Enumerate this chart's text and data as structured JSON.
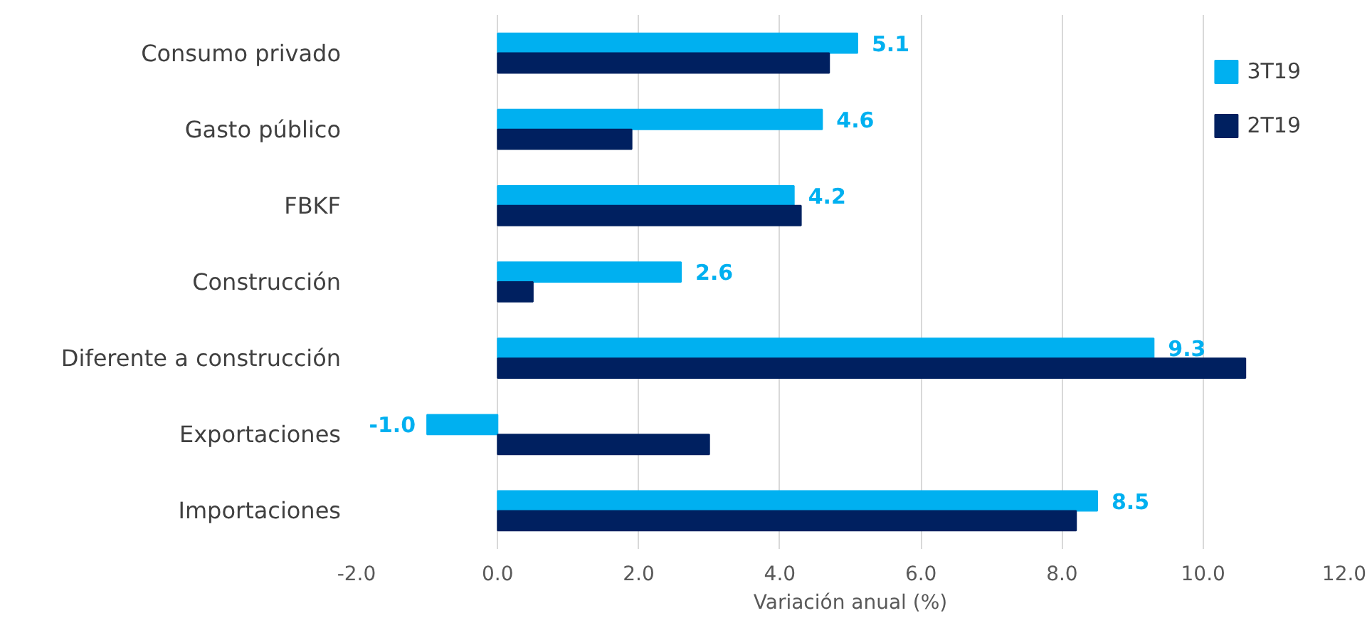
{
  "chart_data": {
    "type": "bar",
    "orientation": "horizontal",
    "xlabel": "Variación anual (%)",
    "categories": [
      "Consumo privado",
      "Gasto público",
      "FBKF",
      "Construcción",
      "Diferente a construcción",
      "Exportaciones",
      "Importaciones"
    ],
    "series": [
      {
        "name": "3T19",
        "color": "#00b0f0",
        "values": [
          5.1,
          4.6,
          4.2,
          2.6,
          9.3,
          -1.0,
          8.5
        ],
        "value_labels": [
          "5.1",
          "4.6",
          "4.2",
          "2.6",
          "9.3",
          "-1.0",
          "8.5"
        ]
      },
      {
        "name": "2T19",
        "color": "#002060",
        "values": [
          4.7,
          1.9,
          4.3,
          0.5,
          10.6,
          3.0,
          8.2
        ]
      }
    ],
    "xlim": [
      -2,
      12
    ],
    "xticks": [
      {
        "value": -2,
        "label": "-2.0"
      },
      {
        "value": 0,
        "label": "0.0"
      },
      {
        "value": 2,
        "label": "2.0"
      },
      {
        "value": 4,
        "label": "4.0"
      },
      {
        "value": 6,
        "label": "6.0"
      },
      {
        "value": 8,
        "label": "8.0"
      },
      {
        "value": 10,
        "label": "10.0"
      },
      {
        "value": 12,
        "label": "12.0"
      }
    ],
    "grid": "x",
    "legend": "top right"
  }
}
